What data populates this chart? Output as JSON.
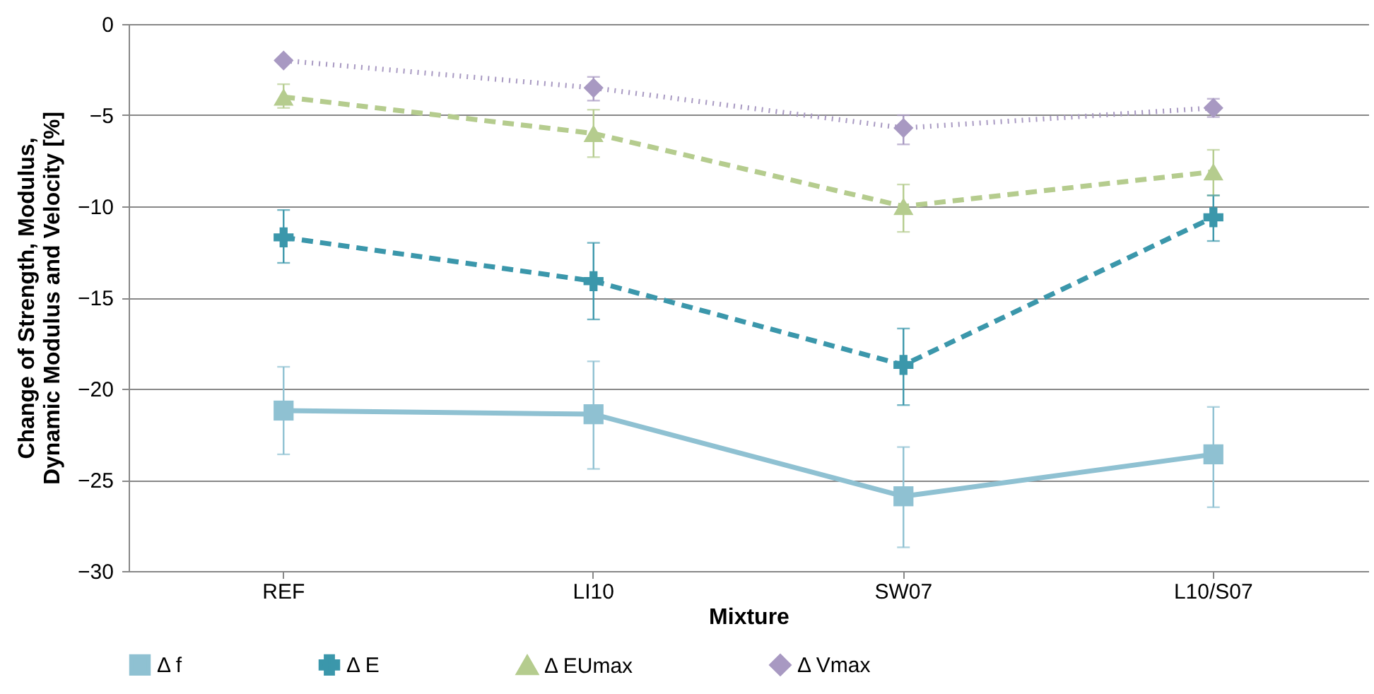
{
  "chart_data": {
    "type": "line",
    "xlabel": "Mixture",
    "ylabel": "Change of Strength, Modulus, Dynamic Modulus and Velocity [%]",
    "categories": [
      "REF",
      "LI10",
      "SW07",
      "L10/S07"
    ],
    "ylim": [
      -30,
      0
    ],
    "yticks": [
      -30,
      -25,
      -20,
      -15,
      -10,
      -5,
      0
    ],
    "grid": "y",
    "legend": "bottom",
    "series": [
      {
        "name": "Δ f",
        "color": "#8fc1d2",
        "marker": "square",
        "line_style": "solid",
        "values": [
          -21.2,
          -21.4,
          -25.9,
          -23.6
        ],
        "errors": [
          [
            -23.6,
            -18.8
          ],
          [
            -24.4,
            -18.5
          ],
          [
            -28.7,
            -23.2
          ],
          [
            -26.5,
            -21.0
          ]
        ]
      },
      {
        "name": "Δ E",
        "color": "#3b97ab",
        "marker": "cross",
        "line_style": "dashed",
        "values": [
          -11.7,
          -14.1,
          -18.7,
          -10.6
        ],
        "errors": [
          [
            -13.1,
            -10.2
          ],
          [
            -16.2,
            -12.0
          ],
          [
            -20.9,
            -16.7
          ],
          [
            -11.9,
            -9.4
          ]
        ]
      },
      {
        "name": "Δ EUmax",
        "color": "#b5cc8e",
        "marker": "triangle",
        "line_style": "dashed",
        "values": [
          -4.0,
          -6.0,
          -10.0,
          -8.1
        ],
        "errors": [
          [
            -4.6,
            -3.3
          ],
          [
            -7.3,
            -4.7
          ],
          [
            -11.4,
            -8.8
          ],
          [
            -9.4,
            -6.9
          ]
        ]
      },
      {
        "name": "Δ Vmax",
        "color": "#a899c2",
        "marker": "diamond",
        "line_style": "dotted",
        "values": [
          -2.0,
          -3.5,
          -5.7,
          -4.6
        ],
        "errors": [
          null,
          [
            -4.2,
            -2.9
          ],
          [
            -6.6,
            -5.0
          ],
          [
            -5.1,
            -4.1
          ]
        ]
      }
    ]
  }
}
